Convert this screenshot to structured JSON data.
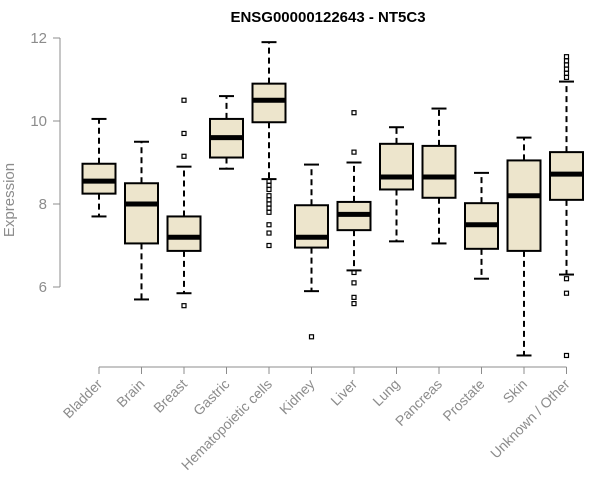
{
  "chart_data": {
    "type": "boxplot",
    "title": "ENSG00000122643 - NT5C3",
    "xlabel": "",
    "ylabel": "Expression",
    "ylim": [
      4.0,
      12.2
    ],
    "yticks": [
      6,
      8,
      10,
      12
    ],
    "grid": false,
    "categories": [
      "Bladder",
      "Brain",
      "Breast",
      "Gastric",
      "Hematopoietic cells",
      "Kidney",
      "Liver",
      "Lung",
      "Pancreas",
      "Prostate",
      "Skin",
      "Unknown / Other"
    ],
    "boxes": [
      {
        "category": "Bladder",
        "whisker_low": 7.7,
        "q1": 8.25,
        "median": 8.55,
        "q3": 8.97,
        "whisker_high": 10.05,
        "outliers": []
      },
      {
        "category": "Brain",
        "whisker_low": 5.7,
        "q1": 7.05,
        "median": 8.0,
        "q3": 8.5,
        "whisker_high": 9.5,
        "outliers": []
      },
      {
        "category": "Breast",
        "whisker_low": 5.85,
        "q1": 6.87,
        "median": 7.2,
        "q3": 7.7,
        "whisker_high": 8.9,
        "outliers": [
          5.55,
          9.15,
          9.7,
          10.5
        ]
      },
      {
        "category": "Gastric",
        "whisker_low": 8.85,
        "q1": 9.12,
        "median": 9.6,
        "q3": 10.05,
        "whisker_high": 10.6,
        "outliers": []
      },
      {
        "category": "Hematopoietic cells",
        "whisker_low": 8.6,
        "q1": 9.97,
        "median": 10.5,
        "q3": 10.9,
        "whisker_high": 11.9,
        "outliers": [
          7.0,
          7.3,
          7.5,
          7.8,
          7.9,
          8.0,
          8.1,
          8.2,
          8.35,
          8.45,
          8.55
        ]
      },
      {
        "category": "Kidney",
        "whisker_low": 5.9,
        "q1": 6.95,
        "median": 7.2,
        "q3": 7.97,
        "whisker_high": 8.95,
        "outliers": [
          4.8
        ]
      },
      {
        "category": "Liver",
        "whisker_low": 6.4,
        "q1": 7.37,
        "median": 7.75,
        "q3": 8.05,
        "whisker_high": 9.0,
        "outliers": [
          5.6,
          5.75,
          6.1,
          6.35,
          9.25,
          10.2
        ]
      },
      {
        "category": "Lung",
        "whisker_low": 7.1,
        "q1": 8.35,
        "median": 8.65,
        "q3": 9.45,
        "whisker_high": 9.85,
        "outliers": []
      },
      {
        "category": "Pancreas",
        "whisker_low": 7.05,
        "q1": 8.15,
        "median": 8.65,
        "q3": 9.4,
        "whisker_high": 10.3,
        "outliers": []
      },
      {
        "category": "Prostate",
        "whisker_low": 6.2,
        "q1": 6.92,
        "median": 7.5,
        "q3": 8.02,
        "whisker_high": 8.75,
        "outliers": []
      },
      {
        "category": "Skin",
        "whisker_low": 4.35,
        "q1": 6.87,
        "median": 8.2,
        "q3": 9.05,
        "whisker_high": 9.6,
        "outliers": []
      },
      {
        "category": "Unknown / Other",
        "whisker_low": 6.3,
        "q1": 8.1,
        "median": 8.72,
        "q3": 9.25,
        "whisker_high": 10.95,
        "outliers": [
          4.35,
          5.85,
          6.2,
          11.05,
          11.15,
          11.25,
          11.35,
          11.45,
          11.55
        ]
      }
    ],
    "colors": {
      "box_fill": "#ede5cc",
      "box_stroke": "#000000",
      "axis": "#8c8c8c"
    }
  }
}
